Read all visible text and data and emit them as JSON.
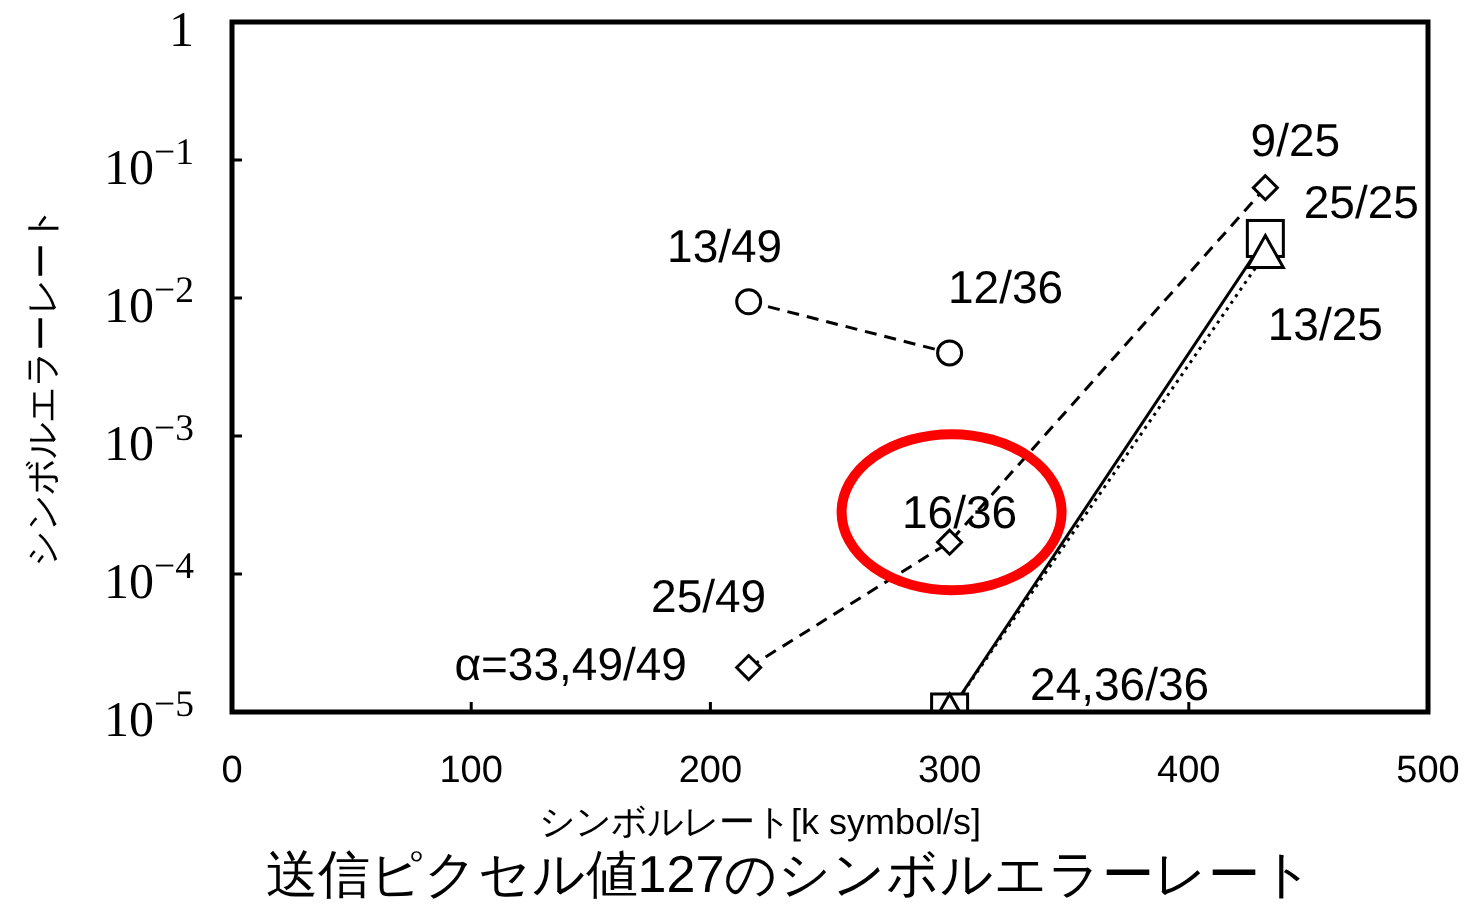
{
  "chart_data": {
    "type": "line",
    "title": "送信ピクセル値127のシンボルエラーレート",
    "xlabel": "シンボルレート[k symbol/s]",
    "ylabel": "シンボルエラーレート",
    "log": "y",
    "grid": false,
    "xlim": [
      0,
      500
    ],
    "xticks": [
      0,
      100,
      200,
      300,
      400,
      500
    ],
    "ylim": [
      1e-05,
      1
    ],
    "yticks": [
      {
        "value": 1e-05,
        "label": "10$^{−5}$"
      },
      {
        "value": 0.0001,
        "label": "10$^{−4}$"
      },
      {
        "value": 0.001,
        "label": "10$^{−3}$"
      },
      {
        "value": 0.01,
        "label": "10$^{−2}$"
      },
      {
        "value": 0.1,
        "label": "10$^{−1}$"
      },
      {
        "value": 1,
        "label": "1"
      }
    ],
    "series": [
      {
        "color": "#000000",
        "marker": "circle",
        "line_style": "dashed",
        "x": [
          216,
          300
        ],
        "values": [
          0.0094,
          0.004
        ]
      },
      {
        "color": "#000000",
        "marker": "diamond",
        "line_style": "dashed",
        "x": [
          216,
          300,
          432
        ],
        "values": [
          2.1e-05,
          0.00017,
          0.063
        ]
      },
      {
        "color": "#000000",
        "marker": "square",
        "line_style": "solid",
        "x": [
          300,
          432
        ],
        "values": [
          1e-05,
          0.027
        ]
      },
      {
        "color": "#000000",
        "marker": "triangle",
        "line_style": "dotted",
        "x": [
          300,
          432
        ],
        "values": [
          1e-05,
          0.021
        ]
      }
    ],
    "annotations": [
      {
        "text": "13/49",
        "x": 216,
        "y": 0.0094
      },
      {
        "text": "12/36",
        "x": 300,
        "y": 0.004
      },
      {
        "text": "9/25",
        "x": 432,
        "y": 0.063
      },
      {
        "text": "25/25",
        "x": 432,
        "y": 0.027
      },
      {
        "text": "13/25",
        "x": 432,
        "y": 0.021
      },
      {
        "text": "16/36",
        "x": 300,
        "y": 0.00017
      },
      {
        "text": "25/49",
        "x": 216,
        "y": 2.1e-05
      },
      {
        "text": "α=33,49/49",
        "x": 216,
        "y": 2.1e-05
      },
      {
        "text": "24,36/36",
        "x": 300,
        "y": 1e-05
      }
    ]
  }
}
